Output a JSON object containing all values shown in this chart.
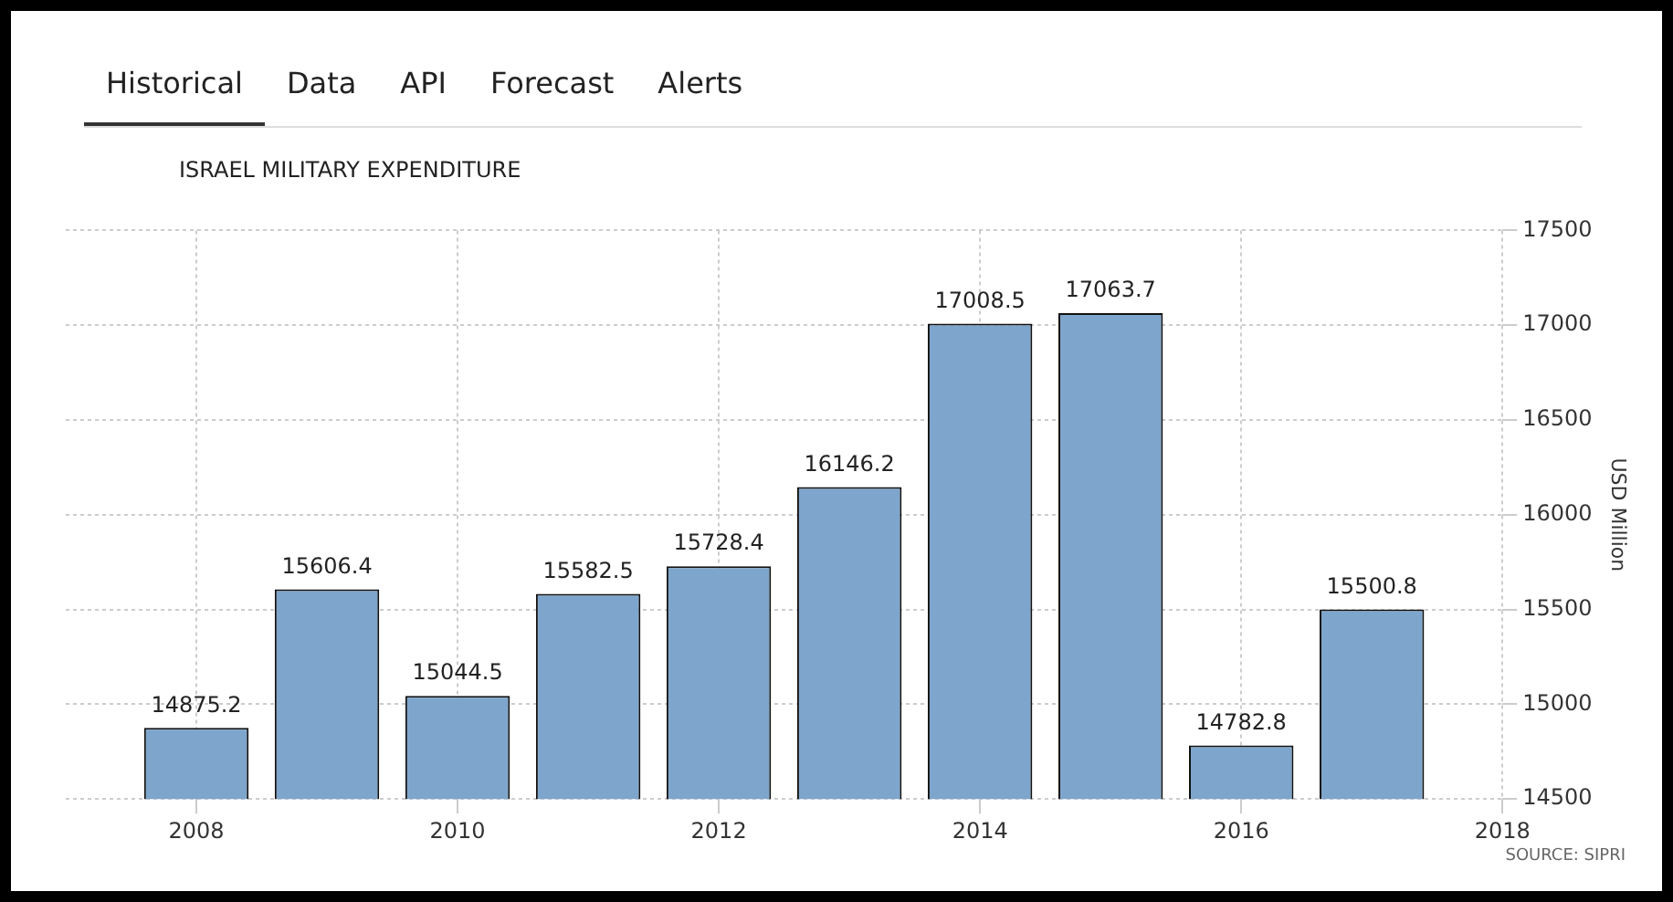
{
  "chart_data": {
    "type": "bar",
    "title": "ISRAEL MILITARY EXPENDITURE",
    "ylabel": "USD Million",
    "x": [
      2008,
      2009,
      2010,
      2011,
      2012,
      2013,
      2014,
      2015,
      2016,
      2017
    ],
    "values": [
      14875.2,
      15606.4,
      15044.5,
      15582.5,
      15728.4,
      16146.2,
      17008.5,
      17063.7,
      14782.8,
      15500.8
    ],
    "color": "#7ea5cc",
    "data_labels": true,
    "xlim": [
      2007,
      2018
    ],
    "xticks": [
      2008,
      2010,
      2012,
      2014,
      2016,
      2018
    ],
    "ylim": [
      14500,
      17500
    ],
    "yticks": [
      14500,
      15000,
      15500,
      16000,
      16500,
      17000,
      17500
    ],
    "grid": true,
    "legend": false,
    "annotations": [
      "Historical",
      "Data",
      "API",
      "Forecast",
      "Alerts",
      "SOURCE: SIPRI"
    ]
  }
}
